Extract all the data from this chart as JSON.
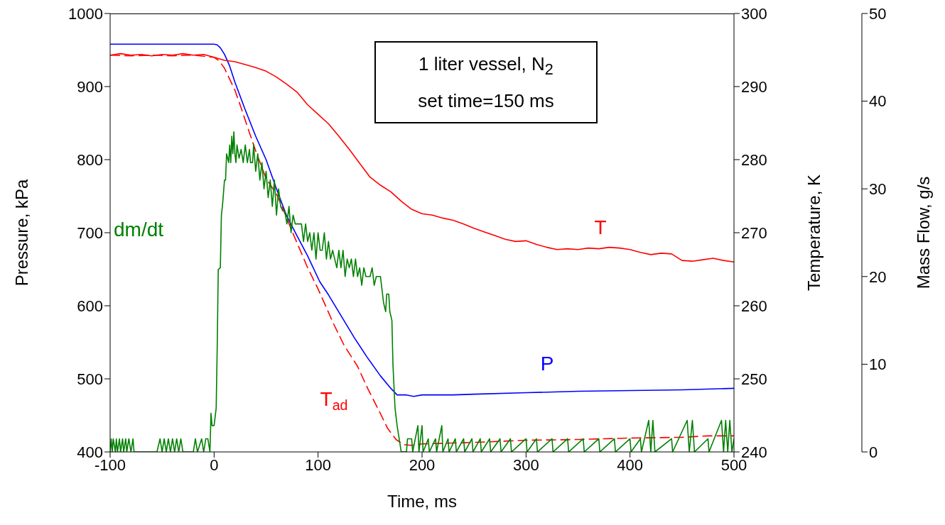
{
  "chart_data": {
    "type": "line",
    "xlabel": "Time, ms",
    "ylabel": "Pressure, kPa",
    "y2label": "Temperature, K",
    "y3label": "Mass Flow, g/s",
    "xlim": [
      -100,
      500
    ],
    "xticks": [
      -100,
      0,
      100,
      200,
      300,
      400,
      500
    ],
    "ylim": [
      400,
      1000
    ],
    "yticks": [
      400,
      500,
      600,
      700,
      800,
      900,
      1000
    ],
    "y2lim": [
      240,
      300
    ],
    "y2ticks": [
      240,
      250,
      260,
      270,
      280,
      290,
      300
    ],
    "y3lim": [
      0,
      50
    ],
    "y3ticks": [
      0,
      10,
      20,
      30,
      40,
      50
    ],
    "annotations": [
      "1 liter vessel, N$_{2}$",
      "set time=150 ms"
    ],
    "series": [
      {
        "name": "P",
        "color": "#0000ff",
        "axis": "y",
        "x": [
          -100,
          -50,
          0,
          3,
          6,
          10,
          15,
          20,
          30,
          40,
          50,
          60,
          69.5,
          80,
          90,
          101.6,
          110,
          124,
          135,
          147,
          160,
          170,
          176,
          185,
          192,
          200,
          230,
          250,
          300,
          350,
          400,
          450,
          500
        ],
        "values": [
          958,
          958,
          958,
          957,
          953,
          944,
          928,
          906,
          868,
          832,
          800,
          760,
          724,
          695,
          668,
          633,
          615,
          582,
          556,
          530,
          504,
          487,
          478,
          478,
          476,
          478,
          478,
          479,
          481,
          483,
          484,
          485,
          487
        ]
      },
      {
        "name": "T",
        "color": "#ff0000",
        "axis": "y2",
        "x": [
          -100,
          -90,
          -80,
          -70,
          -60,
          -50,
          -40,
          -30,
          -20,
          -10,
          0,
          10,
          20,
          30,
          40,
          50,
          60,
          70,
          80,
          90,
          100,
          110,
          120,
          130,
          140,
          150,
          160,
          170,
          180,
          190,
          200,
          210,
          220,
          230,
          240,
          250,
          260,
          270,
          280,
          290,
          300,
          310,
          320,
          330,
          340,
          350,
          360,
          370,
          380,
          390,
          400,
          410,
          420,
          430,
          440,
          450,
          460,
          470,
          480,
          490,
          500
        ],
        "values": [
          294.3,
          294.5,
          294.3,
          294.4,
          294.2,
          294.4,
          294.3,
          294.5,
          294.3,
          294.4,
          294.0,
          293.6,
          293.4,
          293.0,
          292.6,
          292.1,
          291.3,
          290.3,
          289.2,
          287.5,
          286.2,
          284.9,
          283.2,
          281.4,
          279.5,
          277.6,
          276.5,
          275.6,
          274.3,
          273.2,
          272.6,
          272.4,
          272.0,
          271.7,
          271.2,
          270.6,
          270.1,
          269.6,
          269.1,
          268.8,
          268.9,
          268.4,
          268.0,
          267.7,
          267.8,
          267.7,
          267.9,
          267.8,
          268.0,
          267.9,
          267.7,
          267.3,
          267.0,
          267.2,
          267.1,
          266.2,
          266.1,
          266.3,
          266.5,
          266.2,
          266.0
        ]
      },
      {
        "name": "T$_{ad}$",
        "color": "#ff0000",
        "axis": "y2",
        "line_style": "dashed",
        "x": [
          -100,
          -80,
          -60,
          -40,
          -20,
          0,
          5,
          10,
          15,
          20,
          25,
          33,
          40,
          50,
          60,
          65,
          75,
          90,
          100,
          115,
          125,
          138,
          148,
          158,
          167,
          175,
          182,
          190,
          200,
          250,
          300,
          350,
          400,
          450,
          475,
          500
        ],
        "values": [
          294.3,
          294.2,
          294.3,
          294.2,
          294.3,
          294.0,
          293.5,
          292.5,
          291.0,
          289.5,
          287.5,
          284.1,
          281.2,
          277.4,
          275.3,
          273.7,
          270.2,
          265.2,
          262.3,
          257.5,
          254.6,
          251.7,
          248.6,
          245.8,
          243.2,
          241.7,
          241.0,
          240.9,
          241.1,
          241.3,
          241.6,
          241.7,
          241.9,
          242.0,
          242.2,
          242.2
        ]
      },
      {
        "name": "dm/dt",
        "color": "#008000",
        "axis": "y3",
        "x": [
          -100,
          -99,
          -98,
          -97,
          -95,
          -94,
          -93,
          -91,
          -90,
          -88,
          -87,
          -85,
          -84,
          -82,
          -80,
          -78,
          -77,
          -55,
          -52,
          -50,
          -48,
          -46,
          -44,
          -42,
          -40,
          -38,
          -36,
          -34,
          -32,
          -30,
          -20,
          -18,
          -16,
          -12,
          -10,
          -8,
          -6,
          -4,
          -3,
          -2,
          0,
          2,
          3,
          4,
          6,
          7,
          8,
          10,
          11,
          12,
          14,
          15,
          16,
          17,
          18,
          19,
          20,
          21,
          22,
          24,
          26,
          28,
          30,
          32,
          34,
          35,
          37,
          38,
          40,
          42,
          44,
          46,
          48,
          50,
          52,
          54,
          56,
          58,
          60,
          62,
          64,
          66,
          68,
          70,
          72,
          74,
          76,
          78,
          80,
          84,
          86,
          88,
          90,
          92,
          94,
          96,
          98,
          100,
          102,
          104,
          106,
          108,
          110,
          112,
          114,
          116,
          118,
          120,
          122,
          124,
          126,
          128,
          130,
          132,
          134,
          136,
          138,
          140,
          142,
          144,
          146,
          148,
          150,
          152,
          154,
          156,
          158,
          160,
          162,
          163,
          165,
          166,
          168,
          169,
          171,
          172,
          174,
          176,
          180,
          185,
          186,
          190,
          191,
          196,
          197,
          200,
          201,
          206,
          207,
          213,
          214,
          219,
          220,
          225,
          226,
          232,
          233,
          240,
          241,
          248,
          249,
          256,
          257,
          265,
          266,
          275,
          276,
          285,
          286,
          300,
          301,
          310,
          311,
          325,
          326,
          340,
          341,
          355,
          356,
          370,
          371,
          385,
          386,
          400,
          401,
          410,
          411,
          418,
          420,
          422,
          424,
          440,
          441,
          455,
          457,
          460,
          462,
          475,
          476,
          488,
          490,
          492,
          494,
          496,
          498,
          500
        ],
        "values": [
          0,
          1.5,
          0,
          1.5,
          0,
          1.5,
          0,
          1.5,
          0,
          1.5,
          0,
          1.5,
          0,
          1.5,
          0,
          1.5,
          0,
          0,
          1.5,
          0,
          1.5,
          0,
          1.5,
          0,
          1.5,
          0,
          1.5,
          0,
          1.5,
          0,
          0,
          1.5,
          0,
          1.5,
          0,
          1.5,
          1.5,
          0,
          4.4,
          3,
          3,
          5,
          12,
          20.8,
          21,
          27,
          28,
          31,
          31,
          34,
          33,
          35,
          33,
          36,
          34,
          36.5,
          34,
          33,
          35,
          33.5,
          34.5,
          33,
          35,
          33,
          34.5,
          33,
          33,
          35,
          32,
          34,
          31,
          33,
          30,
          32,
          29,
          31,
          28,
          31,
          27,
          30,
          28,
          27.5,
          27.5,
          26,
          28,
          25,
          27,
          26,
          26,
          26,
          24,
          26,
          24,
          25,
          23,
          25,
          22,
          25,
          23,
          23,
          25,
          22,
          24,
          22,
          23,
          22,
          21,
          23,
          21,
          23,
          20,
          22,
          21,
          22,
          20,
          22,
          20,
          21,
          19,
          21,
          20,
          20,
          20,
          21,
          19,
          20,
          20,
          20,
          18,
          17,
          16,
          18,
          18,
          16,
          15,
          10,
          5,
          3,
          0,
          0,
          1.5,
          1.5,
          0,
          3,
          0,
          3,
          0,
          1.5,
          0,
          1.5,
          0,
          3,
          0,
          1.5,
          0,
          1.5,
          0,
          1.5,
          0,
          1.5,
          0,
          1.5,
          0,
          1.5,
          0,
          1.5,
          0,
          1.5,
          0,
          1.5,
          0,
          1.5,
          0,
          1.5,
          0,
          1.5,
          0,
          1.5,
          0,
          1.5,
          0,
          1.5,
          0,
          1.5,
          0,
          1.5,
          0,
          3.6,
          0,
          3.6,
          0,
          1.5,
          0,
          3.6,
          0,
          3.6,
          0,
          1.5,
          0,
          3.6,
          0,
          3.6,
          0,
          3.6,
          0,
          1.5
        ]
      }
    ]
  }
}
